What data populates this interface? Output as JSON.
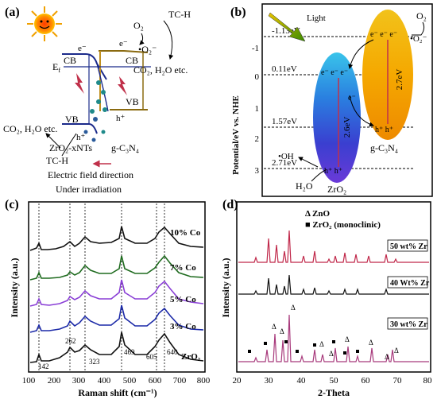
{
  "panel_a": {
    "label": "(a)",
    "o2": "O₂",
    "tch_top": "TC-H",
    "o2_radical": "•O₂⁻",
    "e_left": "e⁻",
    "e_right": "e⁻",
    "cb_left": "CB",
    "cb_right": "CB",
    "ef": "E",
    "ef_sub": "f",
    "products_right": "CO₂, H₂O etc.",
    "vb_right": "VB",
    "h_right": "h⁺",
    "vb_left": "VB",
    "h_left": "h⁺",
    "products_left": "CO₂, H₂O etc.",
    "zro2_label": "ZrO₂-xNTs",
    "gc3n4_label": "g-C₃N₄",
    "tch_bottom": "TC-H",
    "field_text": "Electric field direction",
    "irradiation": "Under irradiation"
  },
  "panel_b": {
    "label": "(b)",
    "light": "Light",
    "o2": "O₂",
    "o2_radical": "•O₂⁻",
    "ylabel": "Potential/eV vs. NHE",
    "levels": [
      "-1.13eV",
      "0.11eV",
      "1.57eV",
      "2.71eV"
    ],
    "ticks": [
      "-1",
      "0",
      "1",
      "2",
      "3"
    ],
    "gap_zro2": "2.6eV",
    "gap_gc3n4": "2.7eV",
    "e_zro2": "e⁻ e⁻ e⁻",
    "e_gc3n4": "e⁻ e⁻ e⁻",
    "e_transfer": "e⁻",
    "h_zro2": "h⁺ h⁺",
    "h_gc3n4": "h⁺ h⁺",
    "oh": "•OH",
    "h2o": "H₂O",
    "zro2": "ZrO₂",
    "gc3n4": "g-C₃N₄"
  },
  "panel_c": {
    "label": "(c)",
    "ylabel": "Intensity (a.u.)",
    "xlabel": "Raman shift (cm⁻¹)",
    "xticks": [
      "100",
      "200",
      "300",
      "400",
      "500",
      "600",
      "700",
      "800"
    ],
    "series_labels": [
      "10% Co",
      "7% Co",
      "5% Co",
      "3% Co",
      "ZrO₂"
    ],
    "series_colors": [
      "#111111",
      "#1f6b1f",
      "#8a3fd6",
      "#1c2aa8",
      "#111111"
    ],
    "peak_labels": [
      "142",
      "262",
      "323",
      "469",
      "605",
      "640"
    ]
  },
  "panel_d": {
    "label": "(d)",
    "ylabel": "Intensity (a.u.)",
    "xlabel": "2-Theta",
    "xticks": [
      "20",
      "30",
      "40",
      "50",
      "60",
      "70",
      "80"
    ],
    "legend_zno": "Δ ZnO",
    "legend_zro2": "■ ZrO₂ (monoclinic)",
    "series_labels": [
      "50 wt% Zr",
      "40 Wt% Zr",
      "30 wt% Zr"
    ],
    "series_colors": [
      "#c0284a",
      "#111111",
      "#a83a7c"
    ]
  }
}
